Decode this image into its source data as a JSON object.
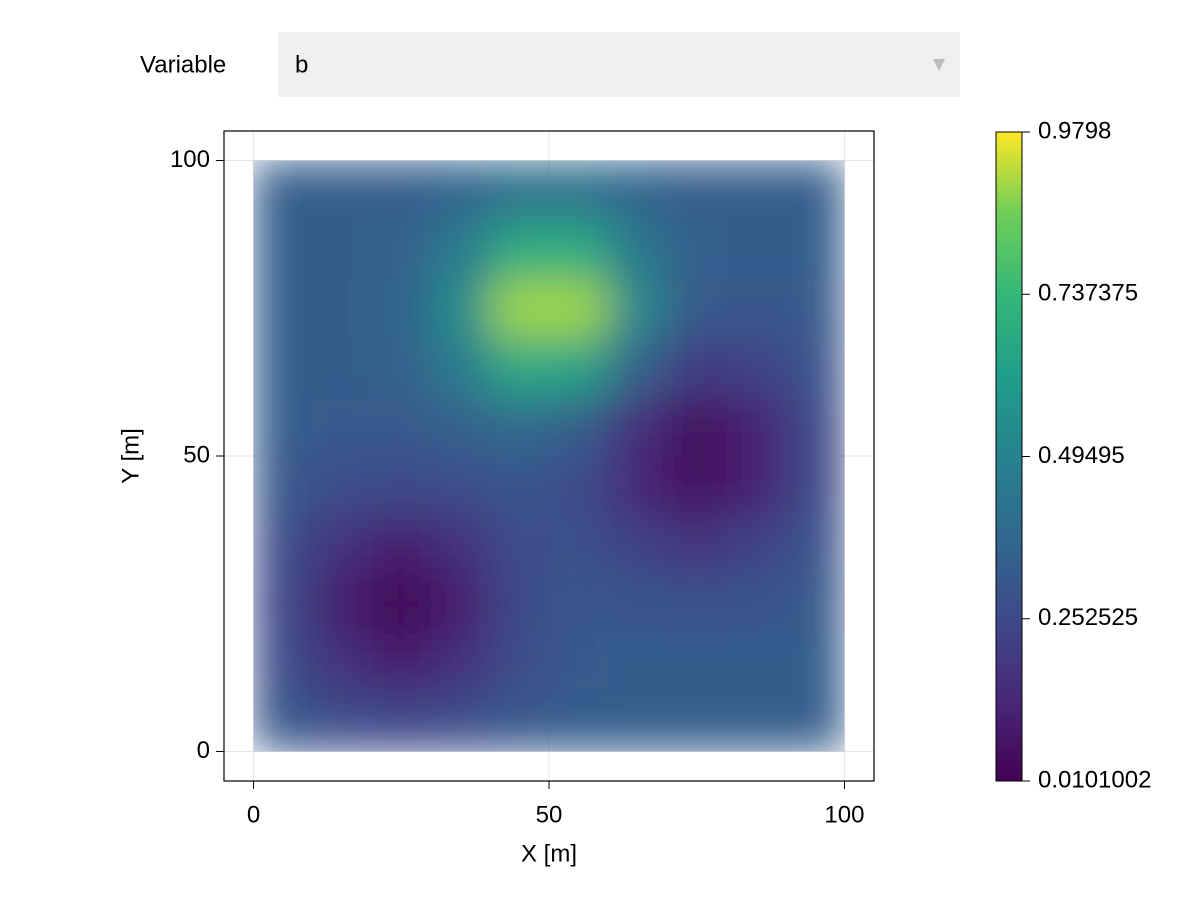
{
  "dropdown": {
    "label": "Variable",
    "value": "b"
  },
  "chart_data": {
    "type": "heatmap",
    "colormap": "viridis",
    "x_label": "X [m]",
    "y_label": "Y [m]",
    "x": [
      5,
      15,
      25,
      35,
      45,
      55,
      65,
      75,
      85,
      95
    ],
    "y": [
      5,
      15,
      25,
      35,
      45,
      55,
      65,
      75,
      85,
      95
    ],
    "z": [
      [
        0.31,
        0.27,
        0.25,
        0.27,
        0.31,
        0.33,
        0.33,
        0.33,
        0.33,
        0.33
      ],
      [
        0.27,
        0.17,
        0.1,
        0.17,
        0.27,
        0.32,
        0.33,
        0.33,
        0.33,
        0.33
      ],
      [
        0.25,
        0.1,
        0.01,
        0.1,
        0.25,
        0.31,
        0.3,
        0.29,
        0.3,
        0.32
      ],
      [
        0.27,
        0.17,
        0.1,
        0.17,
        0.27,
        0.28,
        0.23,
        0.18,
        0.23,
        0.29
      ],
      [
        0.31,
        0.27,
        0.25,
        0.27,
        0.3,
        0.26,
        0.13,
        0.04,
        0.12,
        0.26
      ],
      [
        0.33,
        0.32,
        0.32,
        0.35,
        0.39,
        0.33,
        0.15,
        0.04,
        0.12,
        0.26
      ],
      [
        0.33,
        0.33,
        0.35,
        0.46,
        0.67,
        0.64,
        0.35,
        0.2,
        0.23,
        0.29
      ],
      [
        0.33,
        0.33,
        0.36,
        0.54,
        0.9,
        0.9,
        0.52,
        0.32,
        0.31,
        0.32
      ],
      [
        0.33,
        0.33,
        0.35,
        0.46,
        0.68,
        0.68,
        0.45,
        0.34,
        0.33,
        0.33
      ],
      [
        0.33,
        0.33,
        0.33,
        0.36,
        0.41,
        0.41,
        0.36,
        0.33,
        0.33,
        0.33
      ]
    ],
    "xlim": [
      -5,
      105
    ],
    "ylim": [
      -5,
      105
    ],
    "xticks": [
      0,
      50,
      100
    ],
    "yticks": [
      0,
      50,
      100
    ],
    "grid": true,
    "clim": [
      0.0101002,
      0.9798
    ],
    "cticks": [
      0.0101002,
      0.252525,
      0.49495,
      0.737375,
      0.9798
    ]
  }
}
